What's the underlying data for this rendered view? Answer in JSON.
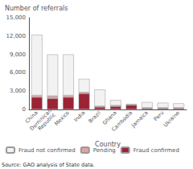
{
  "chart_data": {
    "type": "bar",
    "stacked": true,
    "x_label": "Country",
    "y_label": "Number of referrals",
    "annotations": [
      "Source: GAO analysis of State data."
    ],
    "categories": [
      "China",
      "Dominican\nRepublic",
      "Mexico",
      "India",
      "Brazil",
      "Ghana",
      "Cambodia",
      "Jamaica",
      "Peru",
      "Ukraine"
    ],
    "series": [
      {
        "name": "Fraud confirmed",
        "color": "#9b2335",
        "values": [
          2000,
          1800,
          2000,
          2600,
          400,
          500,
          700,
          200,
          200,
          200
        ]
      },
      {
        "name": "Pending",
        "color": "#e8a0a0",
        "values": [
          300,
          400,
          300,
          200,
          150,
          150,
          100,
          100,
          100,
          100
        ]
      },
      {
        "name": "Fraud not confirmed",
        "color": "#f2f2f2",
        "values": [
          9900,
          6800,
          6700,
          2200,
          2700,
          900,
          100,
          900,
          800,
          700
        ]
      }
    ],
    "ylim": [
      0,
      15000
    ],
    "yticks": [
      0,
      {
        "value": 3000,
        "label": "3,000"
      },
      {
        "value": 6000,
        "label": "6,000"
      },
      {
        "value": 9000,
        "label": "9,000"
      },
      {
        "value": 12000,
        "label": "12,000"
      },
      {
        "value": 15000,
        "label": "15,000"
      }
    ],
    "legend": "bottom",
    "grid": false
  }
}
